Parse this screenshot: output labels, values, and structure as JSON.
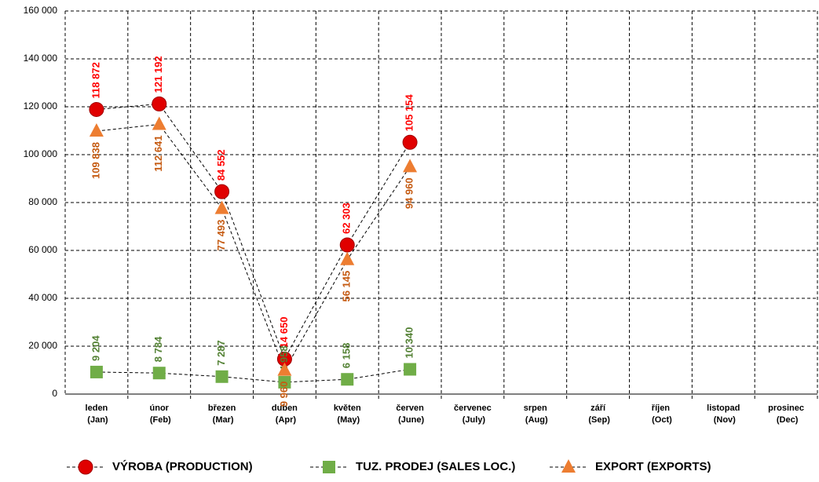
{
  "chart_data": {
    "type": "line",
    "categories": [
      "leden (Jan)",
      "únor (Feb)",
      "březen (Mar)",
      "duben (Apr)",
      "květen (May)",
      "červen (June)",
      "červenec (July)",
      "srpen (Aug)",
      "září (Sep)",
      "říjen (Oct)",
      "listopad (Nov)",
      "prosinec (Dec)"
    ],
    "series": [
      {
        "name": "VÝROBA (PRODUCTION)",
        "color": "#e00000",
        "label_color": "#ff0000",
        "marker": "circle",
        "values": [
          118872,
          121192,
          84552,
          14650,
          62303,
          105154,
          null,
          null,
          null,
          null,
          null,
          null
        ],
        "value_labels": [
          "118 872",
          "121 192",
          "84 552",
          "14 650",
          "62 303",
          "105 154",
          null,
          null,
          null,
          null,
          null,
          null
        ]
      },
      {
        "name": "TUZ. PRODEJ (SALES LOC.)",
        "color": "#70ad47",
        "label_color": "#548235",
        "marker": "square",
        "values": [
          9204,
          8784,
          7287,
          4958,
          6158,
          10340,
          null,
          null,
          null,
          null,
          null,
          null
        ],
        "value_labels": [
          "9 204",
          "8 784",
          "7 287",
          "4 958",
          "6 158",
          "10 340",
          null,
          null,
          null,
          null,
          null,
          null
        ]
      },
      {
        "name": "EXPORT (EXPORTS)",
        "color": "#ed7d31",
        "label_color": "#c55a11",
        "marker": "triangle",
        "values": [
          109838,
          112641,
          77493,
          9960,
          56145,
          94960,
          null,
          null,
          null,
          null,
          null,
          null
        ],
        "value_labels": [
          "109 838",
          "112 641",
          "77 493",
          "9 960",
          "56 145",
          "94 960",
          null,
          null,
          null,
          null,
          null,
          null
        ]
      }
    ],
    "ylim": [
      0,
      160000
    ],
    "yticks": [
      0,
      {
        "value": 20000,
        "label": "20 000"
      },
      {
        "value": 40000,
        "label": "40 000"
      },
      {
        "value": 60000,
        "label": "60 000"
      },
      {
        "value": 80000,
        "label": "80 000"
      },
      {
        "value": 100000,
        "label": "100 000"
      },
      {
        "value": 120000,
        "label": "120 000"
      },
      {
        "value": 140000,
        "label": "140 000"
      },
      {
        "value": 160000,
        "label": "160 000"
      }
    ],
    "grid": true,
    "legend": "bottom"
  }
}
